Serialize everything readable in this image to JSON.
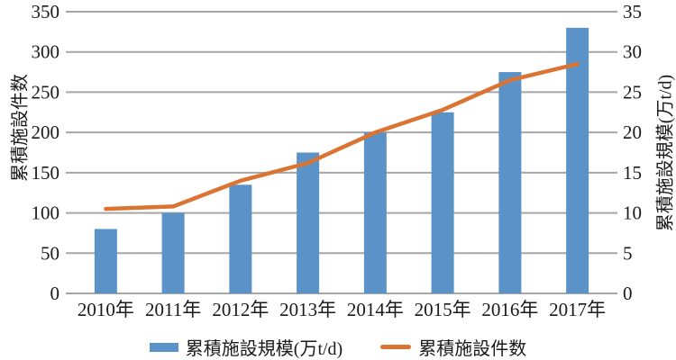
{
  "chart_data": {
    "type": "combo",
    "title": "",
    "categories": [
      "2010年",
      "2011年",
      "2012年",
      "2013年",
      "2014年",
      "2015年",
      "2016年",
      "2017年"
    ],
    "series": [
      {
        "name": "累積施設規模(万t/d)",
        "type": "bar",
        "axis": "right",
        "values": [
          8,
          10,
          13.5,
          17.5,
          20,
          22.5,
          27.5,
          33
        ]
      },
      {
        "name": "累積施設件数",
        "type": "line",
        "axis": "left",
        "values": [
          105,
          108,
          140,
          162,
          200,
          228,
          265,
          285
        ]
      }
    ],
    "left_axis": {
      "label": "累積施設件数",
      "min": 0,
      "max": 350,
      "step": 50,
      "ticks": [
        "0",
        "50",
        "100",
        "150",
        "200",
        "250",
        "300",
        "350"
      ]
    },
    "right_axis": {
      "label": "累積施設規模(万t/d)",
      "min": 0,
      "max": 35,
      "step": 5,
      "ticks": [
        "0",
        "5",
        "10",
        "15",
        "20",
        "25",
        "30",
        "35"
      ]
    },
    "grid": true,
    "legend_position": "bottom"
  },
  "colors": {
    "bar": "#5B93C8",
    "line": "#DB7433",
    "grid": "#A6A6A6",
    "text": "#1A1A1A",
    "background": "#FFFFFF"
  }
}
